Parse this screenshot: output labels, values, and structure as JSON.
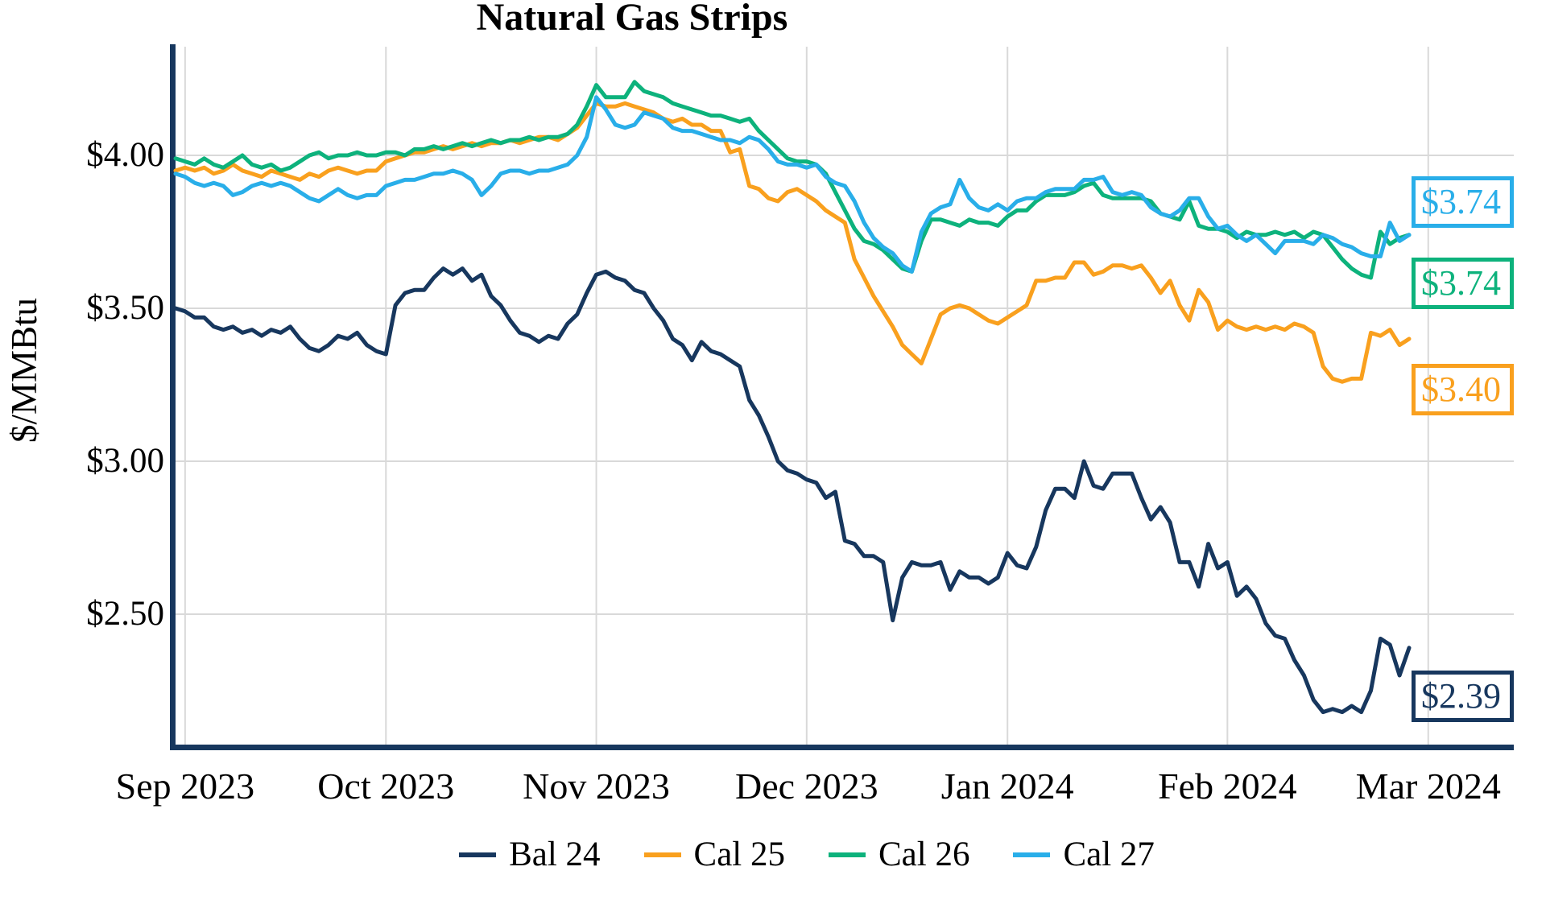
{
  "title": "Natural Gas Strips",
  "y_axis": {
    "label": "$/MMBtu",
    "ticks": [
      "$4.00",
      "$3.50",
      "$3.00",
      "$2.50"
    ],
    "tick_values": [
      4.0,
      3.5,
      3.0,
      2.5
    ]
  },
  "x_axis": {
    "ticks": [
      "Sep 2023",
      "Oct 2023",
      "Nov 2023",
      "Dec 2023",
      "Jan 2024",
      "Feb 2024",
      "Mar 2024"
    ]
  },
  "colors": {
    "axis": "#17375E",
    "grid": "#D9D9D9",
    "bal24": "#17375E",
    "cal25": "#F9A01E",
    "cal26": "#0DB27C",
    "cal27": "#29AEE9"
  },
  "chart_data": {
    "type": "line",
    "title": "Natural Gas Strips",
    "xlabel": "",
    "ylabel": "$/MMBtu",
    "x_unit": "daily settles, Sep 2023 - Mar 2024",
    "ylim": [
      2.07,
      4.36
    ],
    "grid": true,
    "legend_position": "bottom",
    "month_tick_indices": [
      1,
      22,
      44,
      66,
      87,
      110,
      131
    ],
    "series": [
      {
        "name": "Bal 24",
        "color": "#17375E",
        "last_label": "$2.39",
        "values": [
          3.5,
          3.49,
          3.47,
          3.47,
          3.44,
          3.43,
          3.44,
          3.42,
          3.43,
          3.41,
          3.43,
          3.42,
          3.44,
          3.4,
          3.37,
          3.36,
          3.38,
          3.41,
          3.4,
          3.42,
          3.38,
          3.36,
          3.35,
          3.51,
          3.55,
          3.56,
          3.56,
          3.6,
          3.63,
          3.61,
          3.63,
          3.59,
          3.61,
          3.54,
          3.51,
          3.46,
          3.42,
          3.41,
          3.39,
          3.41,
          3.4,
          3.45,
          3.48,
          3.55,
          3.61,
          3.62,
          3.6,
          3.59,
          3.56,
          3.55,
          3.5,
          3.46,
          3.4,
          3.38,
          3.33,
          3.39,
          3.36,
          3.35,
          3.33,
          3.31,
          3.2,
          3.15,
          3.08,
          3.0,
          2.97,
          2.96,
          2.94,
          2.93,
          2.88,
          2.9,
          2.74,
          2.73,
          2.69,
          2.69,
          2.67,
          2.48,
          2.62,
          2.67,
          2.66,
          2.66,
          2.67,
          2.58,
          2.64,
          2.62,
          2.62,
          2.6,
          2.62,
          2.7,
          2.66,
          2.65,
          2.72,
          2.84,
          2.91,
          2.91,
          2.88,
          3.0,
          2.92,
          2.91,
          2.96,
          2.96,
          2.96,
          2.88,
          2.81,
          2.85,
          2.8,
          2.67,
          2.67,
          2.59,
          2.73,
          2.65,
          2.67,
          2.56,
          2.59,
          2.55,
          2.47,
          2.43,
          2.42,
          2.35,
          2.3,
          2.22,
          2.18,
          2.19,
          2.18,
          2.2,
          2.18,
          2.25,
          2.42,
          2.4,
          2.3,
          2.39
        ]
      },
      {
        "name": "Cal 25",
        "color": "#F9A01E",
        "last_label": "$3.40",
        "values": [
          3.95,
          3.96,
          3.95,
          3.96,
          3.94,
          3.95,
          3.97,
          3.95,
          3.94,
          3.93,
          3.95,
          3.94,
          3.93,
          3.92,
          3.94,
          3.93,
          3.95,
          3.96,
          3.95,
          3.94,
          3.95,
          3.95,
          3.98,
          3.99,
          4.0,
          4.01,
          4.01,
          4.02,
          4.03,
          4.02,
          4.03,
          4.04,
          4.03,
          4.04,
          4.04,
          4.05,
          4.04,
          4.05,
          4.06,
          4.06,
          4.05,
          4.07,
          4.09,
          4.13,
          4.17,
          4.16,
          4.16,
          4.17,
          4.16,
          4.15,
          4.14,
          4.12,
          4.11,
          4.12,
          4.1,
          4.1,
          4.08,
          4.08,
          4.01,
          4.02,
          3.9,
          3.89,
          3.86,
          3.85,
          3.88,
          3.89,
          3.87,
          3.85,
          3.82,
          3.8,
          3.78,
          3.66,
          3.6,
          3.54,
          3.49,
          3.44,
          3.38,
          3.35,
          3.32,
          3.4,
          3.48,
          3.5,
          3.51,
          3.5,
          3.48,
          3.46,
          3.45,
          3.47,
          3.49,
          3.51,
          3.59,
          3.59,
          3.6,
          3.6,
          3.65,
          3.65,
          3.61,
          3.62,
          3.64,
          3.64,
          3.63,
          3.64,
          3.6,
          3.55,
          3.59,
          3.51,
          3.46,
          3.56,
          3.52,
          3.43,
          3.46,
          3.44,
          3.43,
          3.44,
          3.43,
          3.44,
          3.43,
          3.45,
          3.44,
          3.42,
          3.31,
          3.27,
          3.26,
          3.27,
          3.27,
          3.42,
          3.41,
          3.43,
          3.38,
          3.4
        ]
      },
      {
        "name": "Cal 26",
        "color": "#0DB27C",
        "last_label": "$3.74",
        "values": [
          3.99,
          3.98,
          3.97,
          3.99,
          3.97,
          3.96,
          3.98,
          4.0,
          3.97,
          3.96,
          3.97,
          3.95,
          3.96,
          3.98,
          4.0,
          4.01,
          3.99,
          4.0,
          4.0,
          4.01,
          4.0,
          4.0,
          4.01,
          4.01,
          4.0,
          4.02,
          4.02,
          4.03,
          4.02,
          4.03,
          4.04,
          4.03,
          4.04,
          4.05,
          4.04,
          4.05,
          4.05,
          4.06,
          4.05,
          4.06,
          4.06,
          4.07,
          4.1,
          4.16,
          4.23,
          4.19,
          4.19,
          4.19,
          4.24,
          4.21,
          4.2,
          4.19,
          4.17,
          4.16,
          4.15,
          4.14,
          4.13,
          4.13,
          4.12,
          4.11,
          4.12,
          4.08,
          4.05,
          4.02,
          3.99,
          3.98,
          3.98,
          3.97,
          3.94,
          3.88,
          3.82,
          3.76,
          3.72,
          3.71,
          3.69,
          3.66,
          3.63,
          3.62,
          3.72,
          3.79,
          3.79,
          3.78,
          3.77,
          3.79,
          3.78,
          3.78,
          3.77,
          3.8,
          3.82,
          3.82,
          3.85,
          3.87,
          3.87,
          3.87,
          3.88,
          3.9,
          3.91,
          3.87,
          3.86,
          3.86,
          3.86,
          3.86,
          3.85,
          3.81,
          3.8,
          3.79,
          3.85,
          3.77,
          3.76,
          3.76,
          3.75,
          3.73,
          3.75,
          3.74,
          3.74,
          3.75,
          3.74,
          3.75,
          3.73,
          3.75,
          3.74,
          3.7,
          3.66,
          3.63,
          3.61,
          3.6,
          3.75,
          3.71,
          3.73,
          3.74
        ]
      },
      {
        "name": "Cal 27",
        "color": "#29AEE9",
        "last_label": "$3.74",
        "values": [
          3.94,
          3.93,
          3.91,
          3.9,
          3.91,
          3.9,
          3.87,
          3.88,
          3.9,
          3.91,
          3.9,
          3.91,
          3.9,
          3.88,
          3.86,
          3.85,
          3.87,
          3.89,
          3.87,
          3.86,
          3.87,
          3.87,
          3.9,
          3.91,
          3.92,
          3.92,
          3.93,
          3.94,
          3.94,
          3.95,
          3.94,
          3.92,
          3.87,
          3.9,
          3.94,
          3.95,
          3.95,
          3.94,
          3.95,
          3.95,
          3.96,
          3.97,
          4.0,
          4.06,
          4.19,
          4.15,
          4.1,
          4.09,
          4.1,
          4.14,
          4.13,
          4.12,
          4.09,
          4.08,
          4.08,
          4.07,
          4.06,
          4.05,
          4.05,
          4.04,
          4.06,
          4.05,
          4.02,
          3.98,
          3.97,
          3.97,
          3.96,
          3.97,
          3.93,
          3.91,
          3.9,
          3.85,
          3.78,
          3.73,
          3.7,
          3.68,
          3.64,
          3.62,
          3.75,
          3.81,
          3.83,
          3.84,
          3.92,
          3.86,
          3.83,
          3.82,
          3.84,
          3.82,
          3.85,
          3.86,
          3.86,
          3.88,
          3.89,
          3.89,
          3.89,
          3.92,
          3.92,
          3.93,
          3.88,
          3.87,
          3.88,
          3.87,
          3.83,
          3.81,
          3.8,
          3.82,
          3.86,
          3.86,
          3.8,
          3.76,
          3.77,
          3.74,
          3.72,
          3.74,
          3.71,
          3.68,
          3.72,
          3.72,
          3.72,
          3.71,
          3.74,
          3.73,
          3.71,
          3.7,
          3.68,
          3.67,
          3.67,
          3.78,
          3.72,
          3.74
        ]
      }
    ]
  }
}
